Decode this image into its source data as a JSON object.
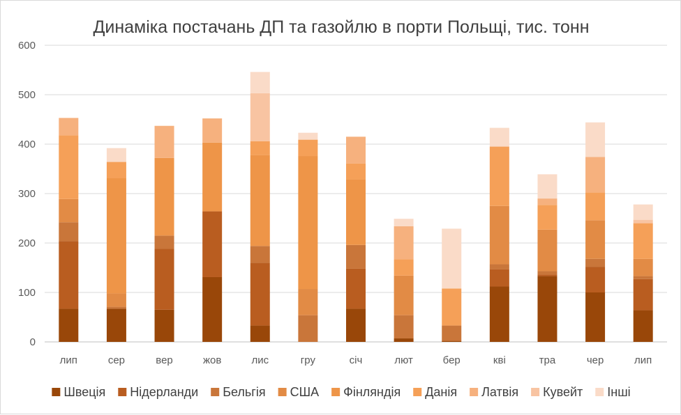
{
  "chart_data": {
    "type": "bar",
    "stacked": true,
    "title": "Динаміка постачань ДП та газойлю в порти Польщі, тис. тонн",
    "xlabel": "",
    "ylabel": "",
    "ylim": [
      0,
      600
    ],
    "yticks": [
      0,
      100,
      200,
      300,
      400,
      500,
      600
    ],
    "grid": true,
    "legend_position": "bottom",
    "categories": [
      "лип",
      "сер",
      "вер",
      "жов",
      "лис",
      "гру",
      "січ",
      "лют",
      "бер",
      "кві",
      "тра",
      "чер",
      "лип"
    ],
    "series": [
      {
        "name": "Швеція",
        "color": "#994709",
        "values": [
          67,
          67,
          65,
          131,
          33,
          0,
          67,
          7,
          2,
          112,
          133,
          100,
          64
        ]
      },
      {
        "name": "Нідерланди",
        "color": "#B95D20",
        "values": [
          137,
          0,
          123,
          133,
          127,
          0,
          81,
          0,
          0,
          35,
          3,
          52,
          63
        ]
      },
      {
        "name": "Бельгія",
        "color": "#C9763A",
        "values": [
          38,
          4,
          27,
          0,
          34,
          54,
          48,
          47,
          31,
          10,
          7,
          16,
          6
        ]
      },
      {
        "name": "США",
        "color": "#E28B45",
        "values": [
          47,
          27,
          0,
          0,
          0,
          53,
          0,
          80,
          0,
          118,
          84,
          78,
          35
        ]
      },
      {
        "name": "Фінляндія",
        "color": "#EE9548",
        "values": [
          0,
          233,
          157,
          139,
          184,
          269,
          133,
          0,
          0,
          0,
          0,
          0,
          0
        ]
      },
      {
        "name": "Данія",
        "color": "#F5A058",
        "values": [
          129,
          33,
          0,
          0,
          28,
          33,
          32,
          33,
          75,
          120,
          50,
          56,
          72
        ]
      },
      {
        "name": "Латвія",
        "color": "#F6B17E",
        "values": [
          35,
          0,
          65,
          49,
          0,
          0,
          54,
          67,
          0,
          0,
          13,
          72,
          0
        ]
      },
      {
        "name": "Кувейт",
        "color": "#F8C4A2",
        "values": [
          0,
          0,
          0,
          0,
          97,
          0,
          0,
          0,
          0,
          0,
          0,
          0,
          7
        ]
      },
      {
        "name": "Інші",
        "color": "#FADBC8",
        "values": [
          0,
          28,
          0,
          0,
          43,
          14,
          0,
          15,
          121,
          38,
          49,
          70,
          31
        ]
      }
    ]
  }
}
